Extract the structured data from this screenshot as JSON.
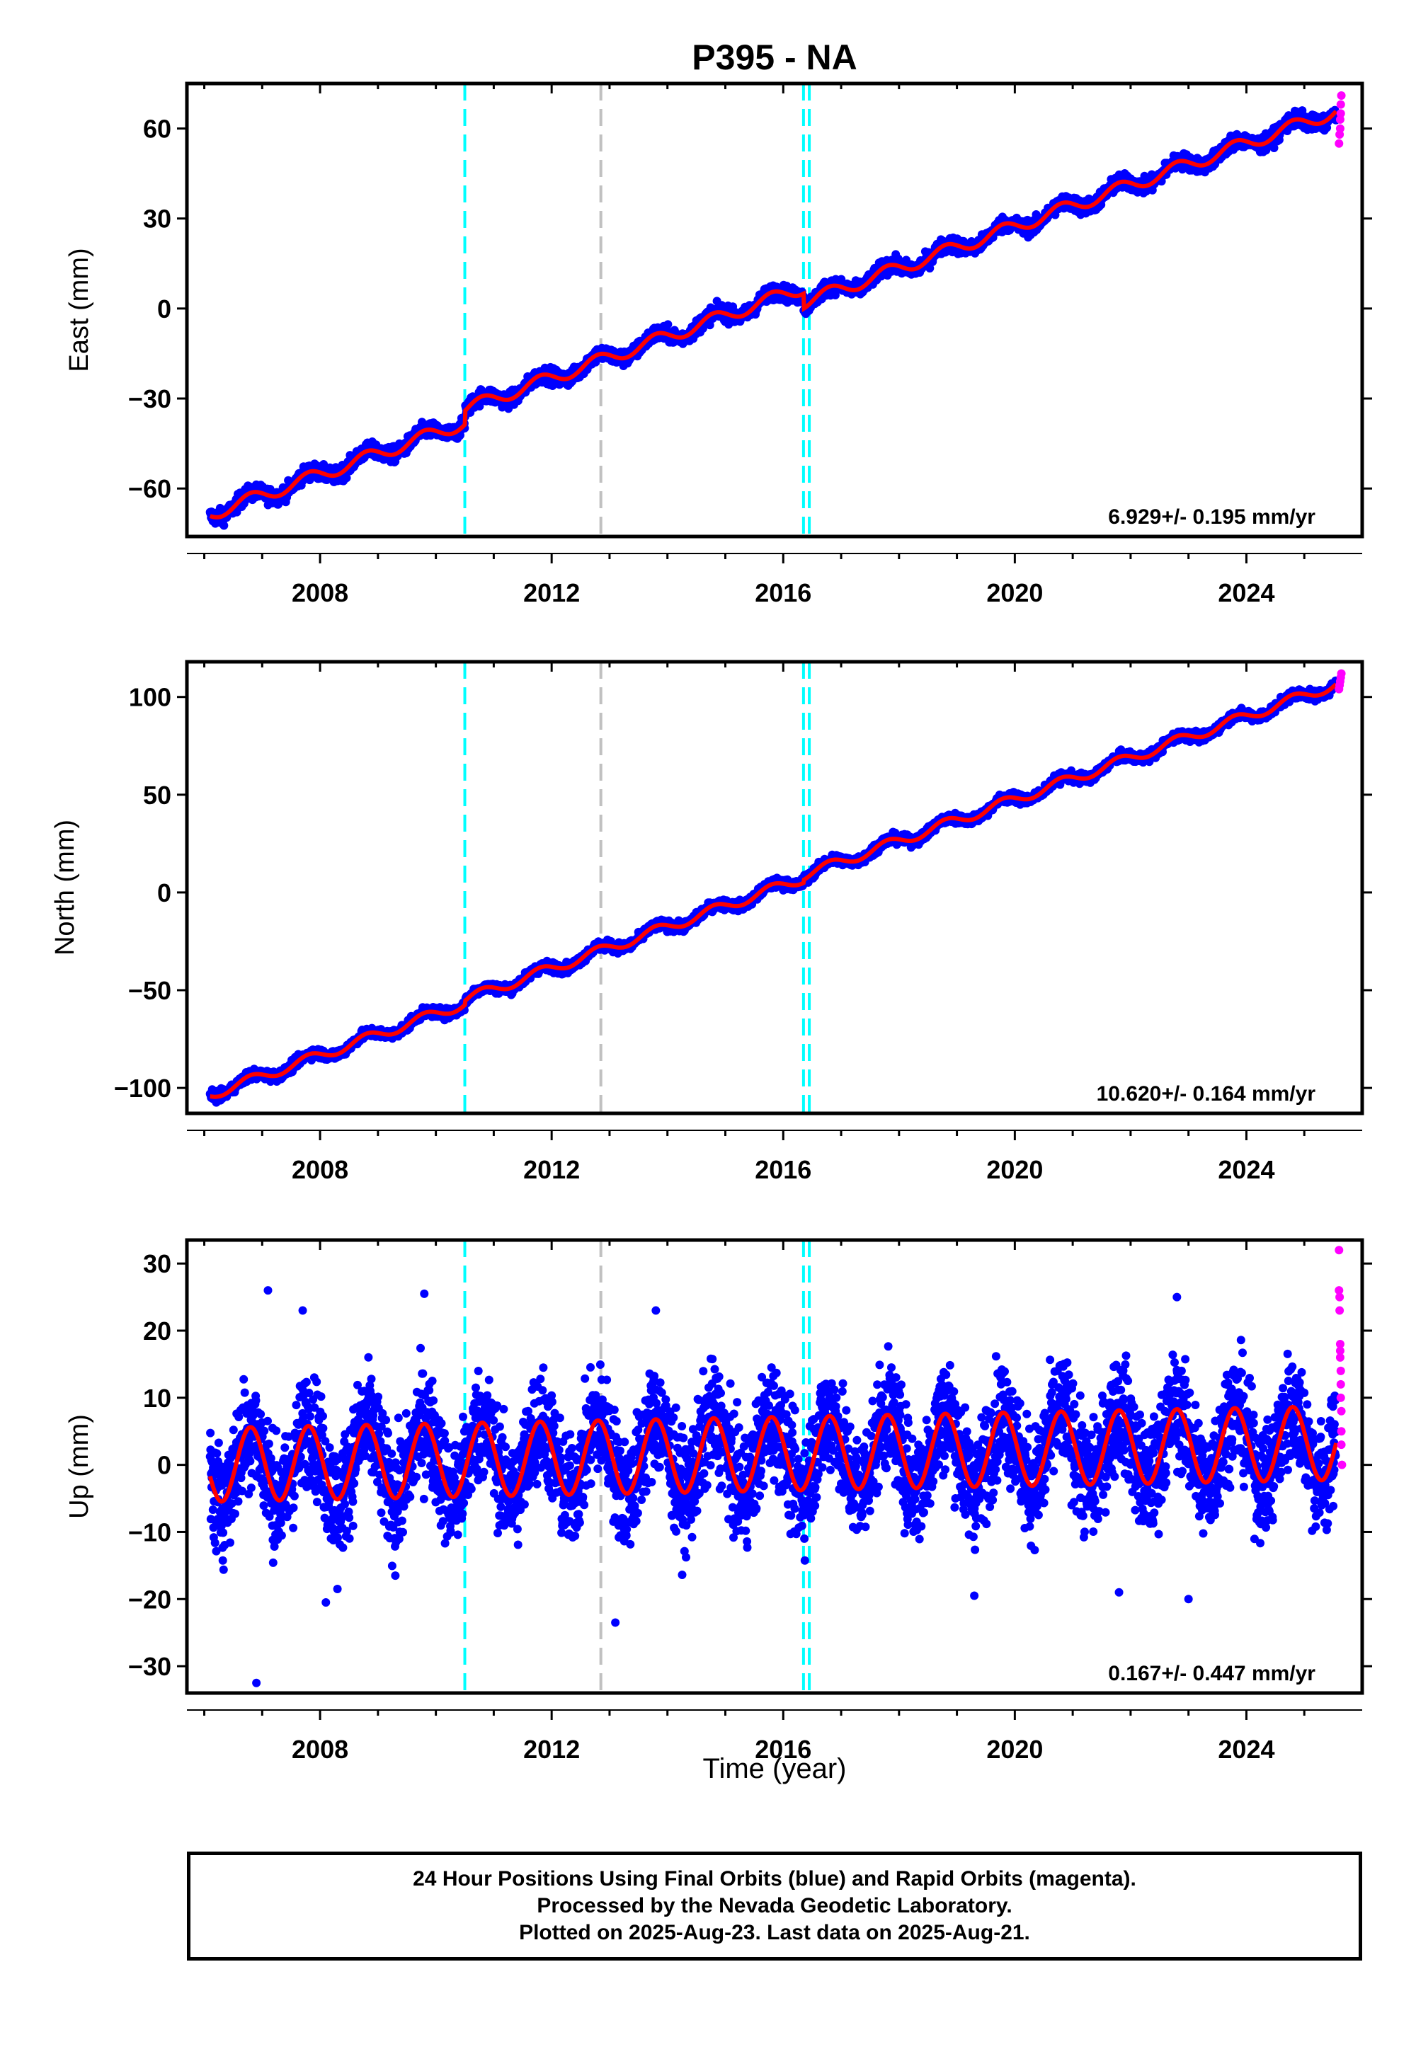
{
  "title": "P395 - NA",
  "x_axis_label": "Time (year)",
  "footer": {
    "line1": "24 Hour Positions Using Final Orbits (blue) and Rapid Orbits (magenta).",
    "line2": "Processed by the Nevada Geodetic Laboratory.",
    "line3": "Plotted on 2025-Aug-23. Last data on 2025-Aug-21."
  },
  "chart_data": [
    {
      "type": "scatter",
      "component": "East",
      "ylabel": "East (mm)",
      "xlim": [
        2005.7,
        2026.0
      ],
      "ylim": [
        -76,
        75
      ],
      "xticks": [
        2008,
        2012,
        2016,
        2020,
        2024
      ],
      "yticks": [
        -60,
        -30,
        0,
        30,
        60
      ],
      "rate_label": "6.929+/- 0.195 mm/yr",
      "series": [
        {
          "color": "#0000ff",
          "model": {
            "start": 2006.1,
            "end": 2025.55,
            "offset_at_start": -68.5,
            "rate": 6.929,
            "amplitude": 2.2,
            "steps": [
              {
                "year": 2010.5,
                "value": 4.5
              },
              {
                "year": 2016.35,
                "value": -5.0
              }
            ]
          }
        },
        {
          "color": "#ff00ff",
          "x": [
            2025.6,
            2025.61,
            2025.62,
            2025.62,
            2025.63,
            2025.63,
            2025.64
          ],
          "y": [
            55,
            58,
            60,
            63,
            65,
            68,
            71
          ]
        }
      ],
      "lines": [
        {
          "color": "#ff0000"
        }
      ],
      "event_lines": [
        {
          "year": 2010.5,
          "color": "#00ffff"
        },
        {
          "year": 2012.85,
          "color": "#c0c0c0"
        },
        {
          "year": 2016.35,
          "color": "#00ffff"
        },
        {
          "year": 2016.45,
          "color": "#00ffff"
        }
      ]
    },
    {
      "type": "scatter",
      "component": "North",
      "ylabel": "North (mm)",
      "xlim": [
        2005.7,
        2026.0
      ],
      "ylim": [
        -113,
        118
      ],
      "xticks": [
        2008,
        2012,
        2016,
        2020,
        2024
      ],
      "yticks": [
        -100,
        -50,
        0,
        50,
        100
      ],
      "rate_label": "10.620+/- 0.164 mm/yr",
      "series": [
        {
          "color": "#0000ff",
          "model": {
            "start": 2006.1,
            "end": 2025.55,
            "offset_at_start": -103.5,
            "rate": 10.62,
            "amplitude": 2.6,
            "steps": [
              {
                "year": 2010.5,
                "value": 2.0
              },
              {
                "year": 2016.35,
                "value": 1.5
              }
            ]
          }
        },
        {
          "color": "#ff00ff",
          "x": [
            2025.6,
            2025.61,
            2025.62,
            2025.63,
            2025.64
          ],
          "y": [
            104,
            106,
            108,
            110,
            112
          ]
        }
      ],
      "lines": [
        {
          "color": "#ff0000"
        }
      ],
      "event_lines": [
        {
          "year": 2010.5,
          "color": "#00ffff"
        },
        {
          "year": 2012.85,
          "color": "#c0c0c0"
        },
        {
          "year": 2016.35,
          "color": "#00ffff"
        },
        {
          "year": 2016.45,
          "color": "#00ffff"
        }
      ]
    },
    {
      "type": "scatter",
      "component": "Up",
      "ylabel": "Up (mm)",
      "xlim": [
        2005.7,
        2026.0
      ],
      "ylim": [
        -34,
        33.5
      ],
      "xticks": [
        2008,
        2012,
        2016,
        2020,
        2024
      ],
      "yticks": [
        -30,
        -20,
        -10,
        0,
        10,
        20,
        30
      ],
      "rate_label": "0.167+/- 0.447 mm/yr",
      "series": [
        {
          "color": "#0000ff",
          "model": {
            "start": 2006.1,
            "end": 2025.55,
            "offset_at_start": 0,
            "rate": 0.167,
            "amplitude": 5.5,
            "noise": 4.2,
            "steps": []
          },
          "outliers": {
            "x": [
              2006.9,
              2007.7,
              2007.1,
              2009.8,
              2008.1,
              2009.3,
              2013.1,
              2013.8,
              2019.3,
              2021.8,
              2022.8,
              2023.0,
              2008.3
            ],
            "y": [
              -32.5,
              23,
              26,
              25.5,
              -20.5,
              -16.5,
              -23.5,
              23,
              -19.5,
              -19,
              25,
              -20,
              -18.5
            ]
          }
        },
        {
          "color": "#ff00ff",
          "x": [
            2025.6,
            2025.6,
            2025.61,
            2025.61,
            2025.62,
            2025.62,
            2025.62,
            2025.63,
            2025.63,
            2025.63,
            2025.64,
            2025.64,
            2025.64,
            2025.65
          ],
          "y": [
            32,
            26,
            25,
            23,
            18,
            17,
            16,
            14,
            12,
            10,
            8,
            5,
            3,
            0
          ]
        }
      ],
      "lines": [
        {
          "color": "#ff0000"
        }
      ],
      "event_lines": [
        {
          "year": 2010.5,
          "color": "#00ffff"
        },
        {
          "year": 2012.85,
          "color": "#c0c0c0"
        },
        {
          "year": 2016.35,
          "color": "#00ffff"
        },
        {
          "year": 2016.45,
          "color": "#00ffff"
        }
      ]
    }
  ]
}
